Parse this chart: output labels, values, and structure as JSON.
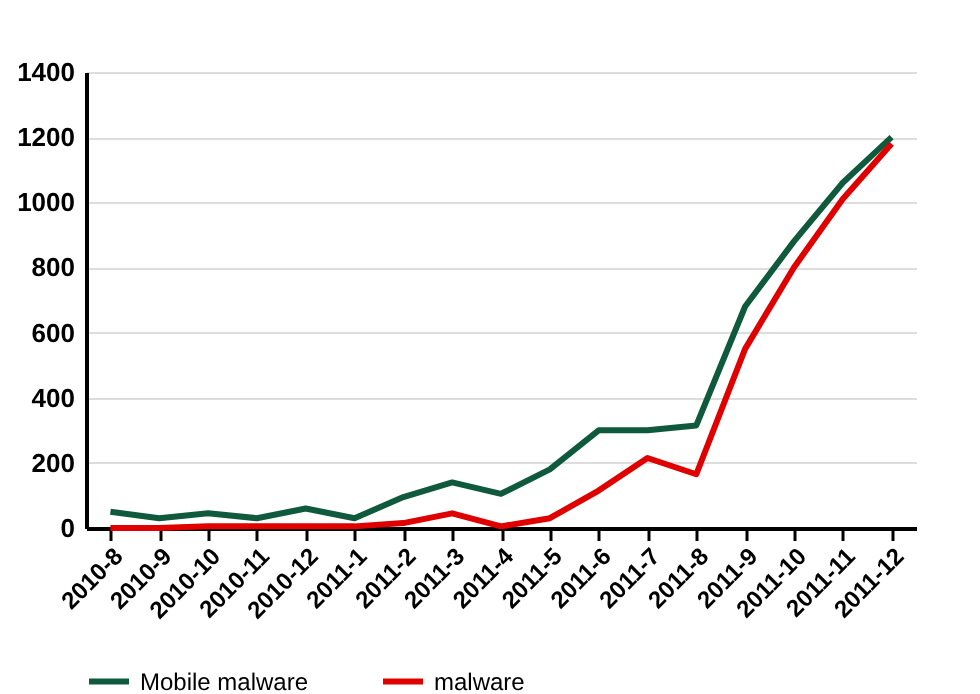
{
  "chart_data": {
    "type": "line",
    "categories": [
      "2010-8",
      "2010-9",
      "2010-10",
      "2010-11",
      "2010-12",
      "2011-1",
      "2011-2",
      "2011-3",
      "2011-4",
      "2011-5",
      "2011-6",
      "2011-7",
      "2011-8",
      "2011-9",
      "2011-10",
      "2011-11",
      "2011-12"
    ],
    "series": [
      {
        "name": "Mobile malware",
        "color": "#0f5a3c",
        "values": [
          50,
          30,
          45,
          30,
          60,
          30,
          95,
          140,
          105,
          180,
          300,
          300,
          315,
          680,
          880,
          1060,
          1200
        ]
      },
      {
        "name": "malware",
        "color": "#e00000",
        "values": [
          0,
          0,
          5,
          5,
          5,
          5,
          15,
          45,
          5,
          30,
          115,
          215,
          165,
          550,
          800,
          1010,
          1180
        ]
      }
    ],
    "ylim": [
      0,
      1400
    ],
    "yticks": [
      0,
      200,
      400,
      600,
      800,
      1000,
      1200,
      1400
    ],
    "grid": "y",
    "legend": "bottom",
    "marker": "none",
    "line_style": "solid"
  }
}
